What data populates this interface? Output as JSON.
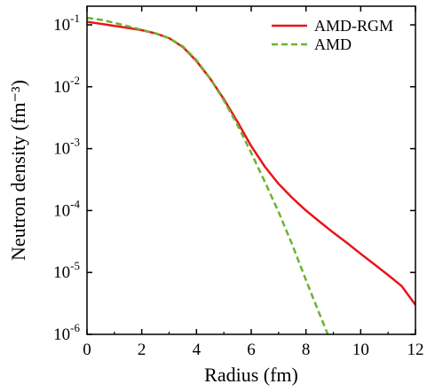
{
  "chart_data": {
    "type": "line",
    "xlabel": "Radius (fm)",
    "ylabel": "Neutron  density (fm⁻³)",
    "xlim": [
      0,
      12
    ],
    "ylim": [
      1e-06,
      0.2
    ],
    "yscale": "log",
    "grid": false,
    "legend_position": "top-right",
    "x_ticks": [
      0,
      2,
      4,
      6,
      8,
      10,
      12
    ],
    "y_ticks": [
      1e-06,
      1e-05,
      0.0001,
      0.001,
      0.01,
      0.1
    ],
    "y_tick_labels": [
      {
        "base": "10",
        "exp": "-6"
      },
      {
        "base": "10",
        "exp": "-5"
      },
      {
        "base": "10",
        "exp": "-4"
      },
      {
        "base": "10",
        "exp": "-3"
      },
      {
        "base": "10",
        "exp": "-2"
      },
      {
        "base": "10",
        "exp": "-1"
      }
    ],
    "series": [
      {
        "name": "AMD-RGM",
        "color": "#e8141b",
        "style": "solid",
        "x": [
          0,
          0.5,
          1,
          1.5,
          2,
          2.5,
          3,
          3.5,
          4,
          4.5,
          5,
          5.5,
          6,
          6.5,
          7,
          7.5,
          8,
          8.5,
          9,
          9.5,
          10,
          10.5,
          11,
          11.5,
          12
        ],
        "y": [
          0.112,
          0.104,
          0.096,
          0.089,
          0.082,
          0.073,
          0.061,
          0.044,
          0.026,
          0.0135,
          0.0063,
          0.0027,
          0.0011,
          0.00051,
          0.00027,
          0.00016,
          0.0001,
          6.6e-05,
          4.4e-05,
          3e-05,
          2e-05,
          1.35e-05,
          9.1e-06,
          6e-06,
          3e-06
        ]
      },
      {
        "name": "AMD",
        "color": "#6ab42d",
        "style": "dashed",
        "x": [
          0,
          0.5,
          1,
          1.5,
          2,
          2.5,
          3,
          3.5,
          4,
          4.5,
          5,
          5.5,
          6,
          6.5,
          7,
          7.5,
          8,
          8.5,
          8.8
        ],
        "y": [
          0.13,
          0.121,
          0.108,
          0.095,
          0.083,
          0.073,
          0.061,
          0.045,
          0.027,
          0.0135,
          0.006,
          0.0024,
          0.00085,
          0.00029,
          9.5e-05,
          2.8e-05,
          7.5e-06,
          2.1e-06,
          1e-06
        ]
      }
    ]
  }
}
